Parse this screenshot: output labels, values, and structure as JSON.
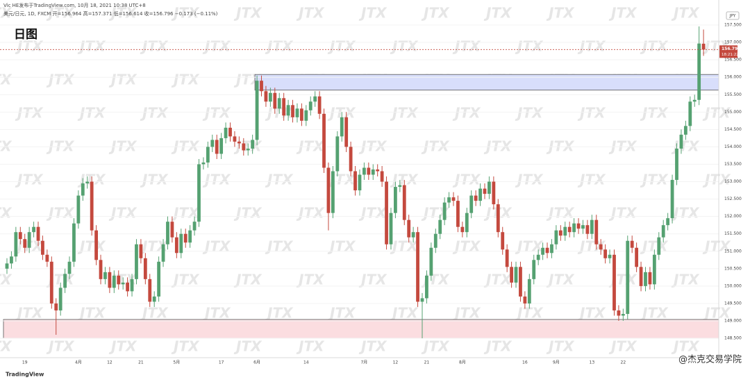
{
  "chart_data": {
    "type": "candlestick",
    "title": "日图",
    "subtitle": "Vic HE发布于TradingView.com, 10月 18, 2021 10:38 UTC+8",
    "ohlc_text": "美元/日元, 1D, FXCM  开=156.964 高=157.371 低=156.614 收=156.796 −0.173 (−0.11%)",
    "currency": "JPY",
    "countdown": "18:21:22",
    "watermark": "JTX",
    "brand": "TradingView",
    "credit": "@杰克交易学院",
    "up_color": "#55a171",
    "down_color": "#c4493e",
    "grid": true,
    "ylim": [
      147.95,
      157.98
    ],
    "yticks": [
      {
        "value": 148.5,
        "label": "148.500"
      },
      {
        "value": 149,
        "label": "149.000"
      },
      {
        "value": 149.5,
        "label": "149.500"
      },
      {
        "value": 150,
        "label": "150.000"
      },
      {
        "value": 150.5,
        "label": "150.500"
      },
      {
        "value": 151,
        "label": "151.000"
      },
      {
        "value": 151.5,
        "label": "151.500"
      },
      {
        "value": 152,
        "label": "152.000"
      },
      {
        "value": 152.5,
        "label": "152.500"
      },
      {
        "value": 153,
        "label": "153.000"
      },
      {
        "value": 153.5,
        "label": "153.500"
      },
      {
        "value": 154,
        "label": "154.000"
      },
      {
        "value": 154.5,
        "label": "154.500"
      },
      {
        "value": 155,
        "label": "155.000"
      },
      {
        "value": 155.5,
        "label": "155.500"
      },
      {
        "value": 156,
        "label": "156.000"
      },
      {
        "value": 156.5,
        "label": "156.500"
      },
      {
        "value": 157,
        "label": "157.000"
      },
      {
        "value": 157.5,
        "label": "157.500"
      }
    ],
    "zones": [
      {
        "from": 56,
        "low": 155.63,
        "high": 156.08,
        "color": "#d8defb"
      },
      {
        "from": 0,
        "low": 148.5,
        "high": 149.04,
        "color": "#fbdde0"
      }
    ],
    "categories": [
      null,
      null,
      null,
      null,
      "19",
      null,
      null,
      null,
      null,
      null,
      null,
      null,
      null,
      null,
      null,
      null,
      "4月",
      null,
      null,
      null,
      null,
      null,
      null,
      "12",
      null,
      null,
      null,
      null,
      null,
      null,
      "21",
      null,
      null,
      null,
      null,
      null,
      null,
      null,
      "5月",
      null,
      null,
      null,
      null,
      null,
      null,
      null,
      null,
      null,
      "17",
      null,
      null,
      null,
      null,
      null,
      null,
      null,
      "6月",
      null,
      null,
      null,
      null,
      null,
      null,
      null,
      null,
      null,
      null,
      "14",
      null,
      null,
      null,
      null,
      null,
      null,
      null,
      null,
      null,
      null,
      null,
      null,
      "7月",
      null,
      null,
      null,
      null,
      null,
      null,
      "12",
      null,
      null,
      null,
      null,
      null,
      null,
      "21",
      null,
      null,
      null,
      null,
      null,
      null,
      null,
      "8月",
      null,
      null,
      null,
      null,
      null,
      null,
      null,
      null,
      null,
      null,
      null,
      null,
      null,
      "16",
      null,
      null,
      null,
      null,
      null,
      null,
      "9月",
      null,
      null,
      null,
      null,
      null,
      null,
      null,
      "13",
      null,
      null,
      null,
      null,
      null,
      null,
      "22",
      null,
      null,
      null,
      null,
      null,
      null,
      null,
      null,
      null,
      null,
      null,
      null,
      null,
      null,
      null,
      null,
      null,
      null
    ],
    "open": [
      150.5,
      150.65,
      150.85,
      151.55,
      151.35,
      151.1,
      151.55,
      151.7,
      151.3,
      150.9,
      150.7,
      149.5,
      149.3,
      149.95,
      150.35,
      150.7,
      151.8,
      152.6,
      152.95,
      153.0,
      151.6,
      150.75,
      150.2,
      150.4,
      149.95,
      150.3,
      150.05,
      150.1,
      149.85,
      150.2,
      151.2,
      150.8,
      150.2,
      149.55,
      149.7,
      150.7,
      151.2,
      151.85,
      151.4,
      150.95,
      151.5,
      151.25,
      151.6,
      151.85,
      153.5,
      153.55,
      154.0,
      154.2,
      153.8,
      154.25,
      154.55,
      154.3,
      154.15,
      154.1,
      153.9,
      153.95,
      154.2,
      155.9,
      155.6,
      155.3,
      155.55,
      155.1,
      155.4,
      154.9,
      155.2,
      154.85,
      155.1,
      154.75,
      155.05,
      155.3,
      155.45,
      154.95,
      153.4,
      152.1,
      153.3,
      154.3,
      154.85,
      154.0,
      153.3,
      152.75,
      153.2,
      153.4,
      153.2,
      153.35,
      153.3,
      153.0,
      151.2,
      152.1,
      152.85,
      152.9,
      151.9,
      151.4,
      151.55,
      149.55,
      149.65,
      150.3,
      151.1,
      151.5,
      151.9,
      152.4,
      152.55,
      152.45,
      151.7,
      151.55,
      152.1,
      152.6,
      152.45,
      152.8,
      152.65,
      153.0,
      152.35,
      151.55,
      151.05,
      150.55,
      150.1,
      150.55,
      149.7,
      149.5,
      150.2,
      150.75,
      150.9,
      151.1,
      150.95,
      151.2,
      151.6,
      151.45,
      151.7,
      151.55,
      151.8,
      151.65,
      151.75,
      151.5,
      151.9,
      151.2,
      151.05,
      150.8,
      150.9,
      149.3,
      149.15,
      149.2,
      151.3,
      151.1,
      150.55,
      150.0,
      150.4,
      150.05,
      150.9,
      151.4,
      151.75,
      151.95,
      153.05,
      153.95,
      154.35,
      154.6,
      155.3,
      155.35,
      156.964
    ],
    "high": [
      150.8,
      151.0,
      151.7,
      151.7,
      151.5,
      151.7,
      151.85,
      151.85,
      151.45,
      151.05,
      150.85,
      149.65,
      150.1,
      150.5,
      150.85,
      151.95,
      152.75,
      153.1,
      153.15,
      153.15,
      151.75,
      150.9,
      150.55,
      150.55,
      150.45,
      150.45,
      150.25,
      150.25,
      150.35,
      151.35,
      151.35,
      150.95,
      150.35,
      149.85,
      150.85,
      151.35,
      152.0,
      152.0,
      151.55,
      151.65,
      151.65,
      151.75,
      152.0,
      153.65,
      153.7,
      154.15,
      154.35,
      154.35,
      154.4,
      154.7,
      154.7,
      154.45,
      154.3,
      154.25,
      154.1,
      154.35,
      156.05,
      156.05,
      155.75,
      155.7,
      155.7,
      155.55,
      155.55,
      155.35,
      155.35,
      155.25,
      155.25,
      155.2,
      155.45,
      155.6,
      155.6,
      155.1,
      153.55,
      153.45,
      154.45,
      155.0,
      155.0,
      154.15,
      153.45,
      153.35,
      153.55,
      153.55,
      153.5,
      153.5,
      153.45,
      153.15,
      152.25,
      153.0,
      153.05,
      153.05,
      152.05,
      151.7,
      151.7,
      149.8,
      150.45,
      151.25,
      151.65,
      152.05,
      152.55,
      152.7,
      152.7,
      152.6,
      151.85,
      152.25,
      152.75,
      152.75,
      152.95,
      152.95,
      153.15,
      153.15,
      152.5,
      151.7,
      151.2,
      150.7,
      150.7,
      150.7,
      149.85,
      150.35,
      150.9,
      151.05,
      151.25,
      151.25,
      151.35,
      151.75,
      151.75,
      151.85,
      151.85,
      151.95,
      151.95,
      151.9,
      151.9,
      152.05,
      152.05,
      151.35,
      151.2,
      151.05,
      151.05,
      149.45,
      149.35,
      151.45,
      151.45,
      151.25,
      150.7,
      150.55,
      150.55,
      151.05,
      151.55,
      151.9,
      152.1,
      153.2,
      154.1,
      154.5,
      154.75,
      155.45,
      155.5,
      157.46,
      157.371
    ],
    "low": [
      150.35,
      150.5,
      150.7,
      151.2,
      150.95,
      150.95,
      151.4,
      151.15,
      150.75,
      150.55,
      149.35,
      148.6,
      149.15,
      149.8,
      150.2,
      150.55,
      151.65,
      152.45,
      152.8,
      151.45,
      150.6,
      150.05,
      150.05,
      149.8,
      149.8,
      149.9,
      149.9,
      149.7,
      149.7,
      150.05,
      150.65,
      150.05,
      149.4,
      149.4,
      149.55,
      150.55,
      151.05,
      151.25,
      150.8,
      150.8,
      151.1,
      151.1,
      151.45,
      151.7,
      153.35,
      153.4,
      153.85,
      153.65,
      153.65,
      154.1,
      154.15,
      154.0,
      153.95,
      153.75,
      153.75,
      153.8,
      154.05,
      155.45,
      155.15,
      155.15,
      154.95,
      154.95,
      154.75,
      154.75,
      154.7,
      154.7,
      154.6,
      154.6,
      154.9,
      155.15,
      154.8,
      153.25,
      151.6,
      151.95,
      153.15,
      154.15,
      153.85,
      153.15,
      152.6,
      152.6,
      153.05,
      153.05,
      153.05,
      153.15,
      152.85,
      151.05,
      151.05,
      151.95,
      152.7,
      151.75,
      151.25,
      151.25,
      149.4,
      148.5,
      149.5,
      150.15,
      150.95,
      151.35,
      151.75,
      152.25,
      152.3,
      151.55,
      151.4,
      151.4,
      151.95,
      152.3,
      152.3,
      152.5,
      152.5,
      152.2,
      151.4,
      150.9,
      150.4,
      149.95,
      149.95,
      149.55,
      149.35,
      149.35,
      150.05,
      150.6,
      150.75,
      150.8,
      150.8,
      151.05,
      151.3,
      151.3,
      151.4,
      151.4,
      151.5,
      151.5,
      151.35,
      151.35,
      151.05,
      150.9,
      150.65,
      150.65,
      149.15,
      149.0,
      149.0,
      149.05,
      150.95,
      150.4,
      149.85,
      149.85,
      149.9,
      149.9,
      150.75,
      151.25,
      151.6,
      151.8,
      152.9,
      153.8,
      154.2,
      154.45,
      155.15,
      155.2,
      156.614
    ],
    "close": [
      150.65,
      150.85,
      151.55,
      151.35,
      151.1,
      151.55,
      151.7,
      151.3,
      150.9,
      150.7,
      149.5,
      149.3,
      149.95,
      150.35,
      150.7,
      151.8,
      152.6,
      152.95,
      153.0,
      151.6,
      150.75,
      150.2,
      150.4,
      149.95,
      150.3,
      150.05,
      150.1,
      149.85,
      150.2,
      151.2,
      150.8,
      150.2,
      149.55,
      149.7,
      150.7,
      151.2,
      151.85,
      151.4,
      150.95,
      151.5,
      151.25,
      151.6,
      151.85,
      153.5,
      153.55,
      154.0,
      154.2,
      153.8,
      154.25,
      154.55,
      154.3,
      154.15,
      154.1,
      153.9,
      153.95,
      154.2,
      155.9,
      155.6,
      155.3,
      155.55,
      155.1,
      155.4,
      154.9,
      155.2,
      154.85,
      155.1,
      154.75,
      155.05,
      155.3,
      155.45,
      154.95,
      153.4,
      152.1,
      153.3,
      154.3,
      154.85,
      154.0,
      153.3,
      152.75,
      153.2,
      153.4,
      153.2,
      153.35,
      153.3,
      153.0,
      151.2,
      152.1,
      152.85,
      152.9,
      151.9,
      151.4,
      151.55,
      149.55,
      149.65,
      150.3,
      151.1,
      151.5,
      151.9,
      152.4,
      152.55,
      152.45,
      151.7,
      151.55,
      152.1,
      152.6,
      152.45,
      152.8,
      152.65,
      153.0,
      152.35,
      151.55,
      151.05,
      150.55,
      150.1,
      150.55,
      149.7,
      149.5,
      150.2,
      150.75,
      150.9,
      151.1,
      150.95,
      151.2,
      151.6,
      151.45,
      151.7,
      151.55,
      151.8,
      151.65,
      151.75,
      151.5,
      151.9,
      151.2,
      151.05,
      150.8,
      150.9,
      149.3,
      149.15,
      149.2,
      151.3,
      151.1,
      150.55,
      150.0,
      150.4,
      150.05,
      150.9,
      151.4,
      151.75,
      151.95,
      153.05,
      153.95,
      154.35,
      154.6,
      155.3,
      155.35,
      156.969,
      156.796
    ]
  }
}
